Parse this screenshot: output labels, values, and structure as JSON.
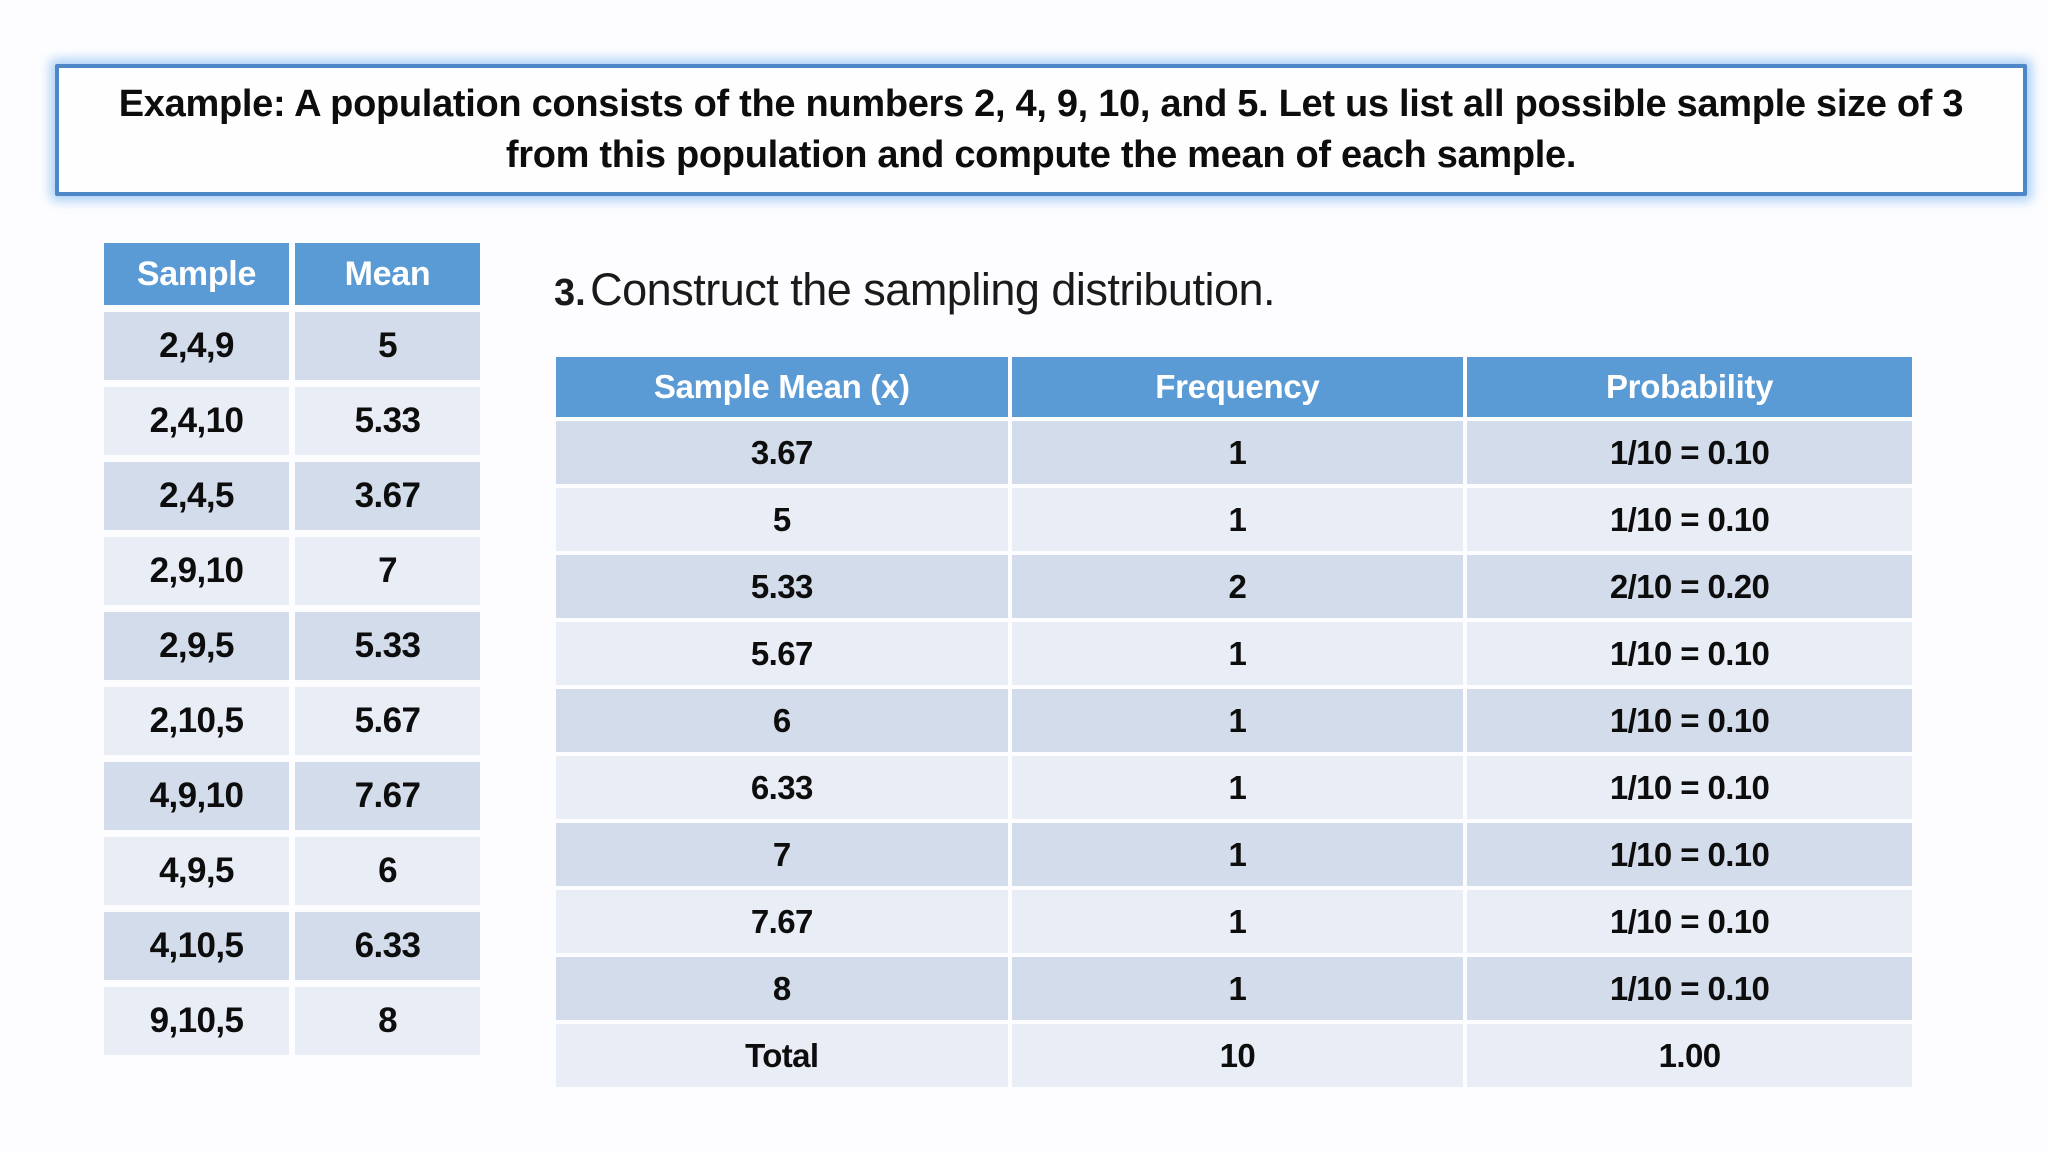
{
  "title": "Example: A population consists of the numbers 2, 4, 9, 10, and 5. Let us list all possible sample size of 3 from this population and compute the mean of each sample.",
  "samples_table": {
    "headers": [
      "Sample",
      "Mean"
    ],
    "rows": [
      [
        "2,4,9",
        "5"
      ],
      [
        "2,4,10",
        "5.33"
      ],
      [
        "2,4,5",
        "3.67"
      ],
      [
        "2,9,10",
        "7"
      ],
      [
        "2,9,5",
        "5.33"
      ],
      [
        "2,10,5",
        "5.67"
      ],
      [
        "4,9,10",
        "7.67"
      ],
      [
        "4,9,5",
        "6"
      ],
      [
        "4,10,5",
        "6.33"
      ],
      [
        "9,10,5",
        "8"
      ]
    ]
  },
  "step": {
    "number": "3.",
    "text": "Construct the sampling distribution."
  },
  "distribution_table": {
    "headers": [
      "Sample Mean (x)",
      "Frequency",
      "Probability"
    ],
    "rows": [
      [
        "3.67",
        "1",
        "1/10 = 0.10"
      ],
      [
        "5",
        "1",
        "1/10 = 0.10"
      ],
      [
        "5.33",
        "2",
        "2/10 = 0.20"
      ],
      [
        "5.67",
        "1",
        "1/10 = 0.10"
      ],
      [
        "6",
        "1",
        "1/10 = 0.10"
      ],
      [
        "6.33",
        "1",
        "1/10 = 0.10"
      ],
      [
        "7",
        "1",
        "1/10 = 0.10"
      ],
      [
        "7.67",
        "1",
        "1/10 = 0.10"
      ],
      [
        "8",
        "1",
        "1/10 = 0.10"
      ],
      [
        "Total",
        "10",
        "1.00"
      ]
    ]
  },
  "colors": {
    "header_blue": "#5b9bd5",
    "stripe_dark": "#d2dcea",
    "stripe_light": "#e9edf6",
    "title_border": "#4e87c7",
    "title_glow": "#a9cdf0",
    "text_dark": "#0d0d0d",
    "slide_bg": "#fdfdff"
  }
}
